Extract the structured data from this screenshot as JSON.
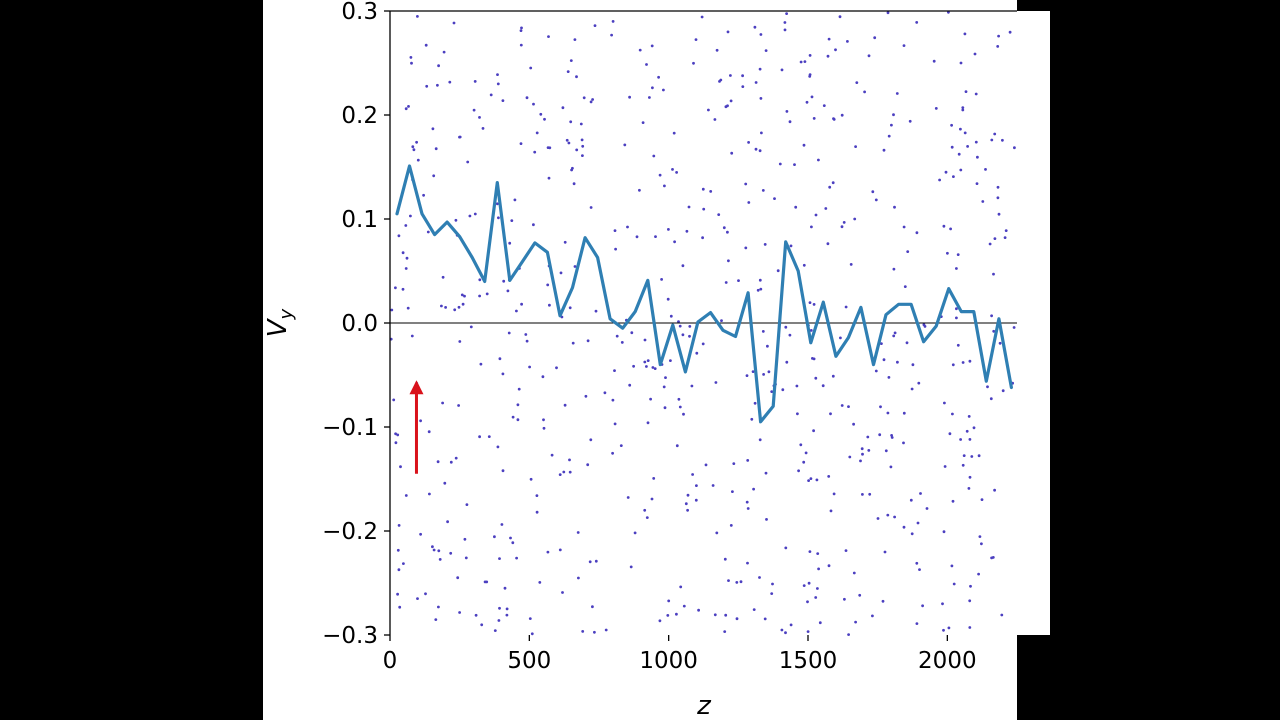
{
  "chart_data": {
    "type": "line",
    "title": "",
    "xlabel": "z",
    "ylabel": "V",
    "ylabel_subscript": "y",
    "xlim": [
      0,
      2250
    ],
    "ylim": [
      -0.3,
      0.3
    ],
    "x_ticks": [
      0,
      500,
      1000,
      1500,
      2000
    ],
    "x_tick_labels": [
      "0",
      "500",
      "1000",
      "1500",
      "2000"
    ],
    "y_ticks": [
      -0.3,
      -0.2,
      -0.1,
      0.0,
      0.1,
      0.2,
      0.3
    ],
    "y_tick_labels": [
      "−0.3",
      "−0.2",
      "−0.1",
      "0.0",
      "0.1",
      "0.2",
      "0.3"
    ],
    "grid": false,
    "zero_line": true,
    "colors": {
      "line": "#2f7fb3",
      "scatter": "#4b3fc0",
      "arrow": "#d9121b",
      "axis": "#000000"
    },
    "series": [
      {
        "x": [
          25,
          70,
          115,
          160,
          205,
          250,
          295,
          340,
          385,
          430,
          475,
          520,
          565,
          610,
          655,
          700,
          745,
          790,
          835,
          880,
          925,
          970,
          1015,
          1060,
          1105,
          1150,
          1195,
          1240,
          1285,
          1330,
          1375,
          1420,
          1465,
          1510,
          1555,
          1600,
          1645,
          1690,
          1735,
          1780,
          1825,
          1870,
          1915,
          1960,
          2005,
          2050,
          2095,
          2140,
          2185,
          2230
        ],
        "values": [
          0.105,
          0.151,
          0.105,
          0.085,
          0.097,
          0.083,
          0.063,
          0.04,
          0.135,
          0.041,
          0.059,
          0.077,
          0.068,
          0.007,
          0.034,
          0.082,
          0.063,
          0.004,
          -0.005,
          0.011,
          0.041,
          -0.04,
          -0.002,
          -0.047,
          0.001,
          0.01,
          -0.007,
          -0.013,
          0.029,
          -0.095,
          -0.08,
          0.078,
          0.05,
          -0.019,
          0.02,
          -0.032,
          -0.014,
          0.015,
          -0.04,
          0.008,
          0.018,
          0.018,
          -0.018,
          -0.003,
          0.033,
          0.011,
          0.011,
          -0.056,
          0.004,
          -0.062
        ]
      }
    ],
    "scatter_points_count": 650,
    "scatter_description": "uniformly scattered particle samples across the full axis range",
    "annotation": {
      "type": "arrow",
      "direction": "up",
      "x_start": 95,
      "y_start": -0.145,
      "x_end": 95,
      "y_end": -0.055
    }
  }
}
